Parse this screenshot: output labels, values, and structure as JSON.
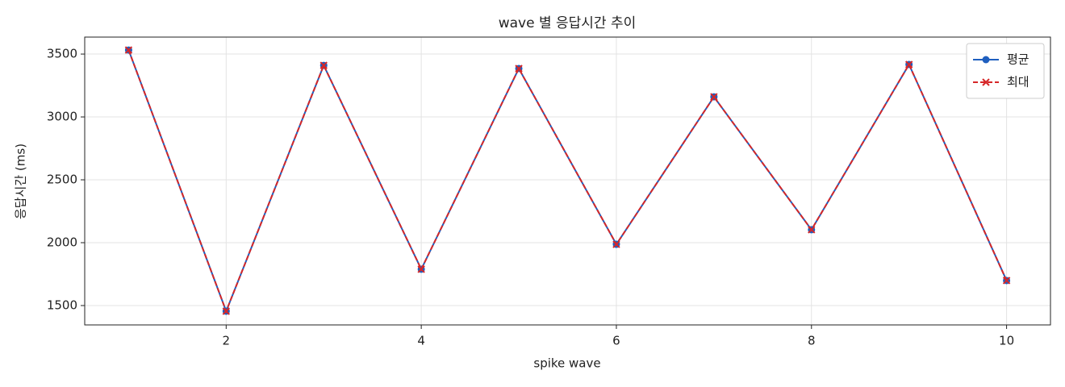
{
  "chart_data": {
    "type": "line",
    "title": "wave 별 응답시간 추이",
    "x_label": "spike wave",
    "y_label": "응답시간 (ms)",
    "x": [
      1,
      2,
      3,
      4,
      5,
      6,
      7,
      8,
      9,
      10
    ],
    "series": [
      {
        "name": "평균",
        "color": "#1f5fbf",
        "marker": "o",
        "linestyle": "solid",
        "values": [
          3532,
          1455,
          3410,
          1789,
          3385,
          1987,
          3160,
          2103,
          3417,
          1699
        ]
      },
      {
        "name": "최대",
        "color": "#d62728",
        "marker": "x",
        "linestyle": "dashed",
        "values": [
          3532,
          1455,
          3410,
          1789,
          3385,
          1987,
          3160,
          2103,
          3417,
          1699
        ]
      }
    ],
    "xlim": [
      0.55,
      10.45
    ],
    "ylim": [
      1346,
      3635
    ],
    "xticks": [
      2,
      4,
      6,
      8,
      10
    ],
    "yticks": [
      1500,
      2000,
      2500,
      3000,
      3500
    ],
    "grid": true,
    "legend": "upper right"
  }
}
